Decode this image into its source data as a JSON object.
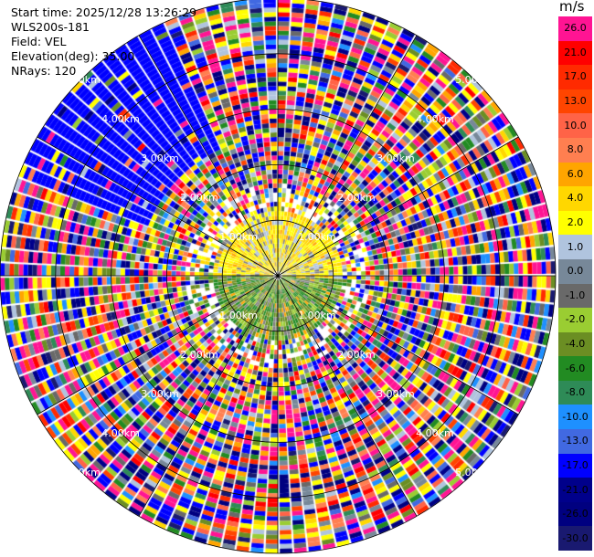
{
  "header": {
    "start_time": "Start time: 2025/12/28 13:26:29",
    "station": "WLS200s-181",
    "field": "Field: VEL",
    "elevation": "Elevation(deg): 35.00",
    "nrays": "NRays: 120"
  },
  "colorbar": {
    "unit": "m/s",
    "ticks": [
      "26.0",
      "21.0",
      "17.0",
      "13.0",
      "10.0",
      "8.0",
      "6.0",
      "4.0",
      "2.0",
      "1.0",
      "0.0",
      "-1.0",
      "-2.0",
      "-4.0",
      "-6.0",
      "-8.0",
      "-10.0",
      "-13.0",
      "-17.0",
      "-21.0",
      "-26.0",
      "-30.0"
    ],
    "colors": [
      "#ff1493",
      "#ff0000",
      "#ff2a00",
      "#ff4500",
      "#ff6347",
      "#ff7f50",
      "#ffa500",
      "#ffd700",
      "#ffff00",
      "#b0c4de",
      "#778899",
      "#696969",
      "#9acd32",
      "#6b8e23",
      "#228b22",
      "#2e8b57",
      "#1e90ff",
      "#4169e1",
      "#0000ff",
      "#00008b",
      "#000080",
      "#191970"
    ]
  },
  "chart_data": {
    "type": "ppi",
    "field": "VEL",
    "units": "m/s",
    "elevation_deg": 35.0,
    "n_rays": 120,
    "max_range_km": 5.0,
    "range_rings_km": [
      1.0,
      2.0,
      3.0,
      4.0,
      5.0
    ],
    "ring_labels": [
      "1.00km",
      "2.00km",
      "3.00km",
      "4.00km",
      "5.00km"
    ],
    "spokes_deg": [
      0,
      30,
      60,
      90,
      120,
      150,
      180,
      210,
      240,
      270,
      300,
      330
    ],
    "near_field": {
      "range_km": [
        0,
        1.2
      ],
      "north_half_velocity_ms": [
        1.0,
        6.0
      ],
      "south_half_velocity_ms": [
        -6.0,
        -1.0
      ]
    },
    "far_field": "noise",
    "coherent_sector": {
      "azimuth_deg": [
        290,
        335
      ],
      "range_km": [
        2.5,
        5.0
      ],
      "velocity_ms": -17.0
    }
  }
}
